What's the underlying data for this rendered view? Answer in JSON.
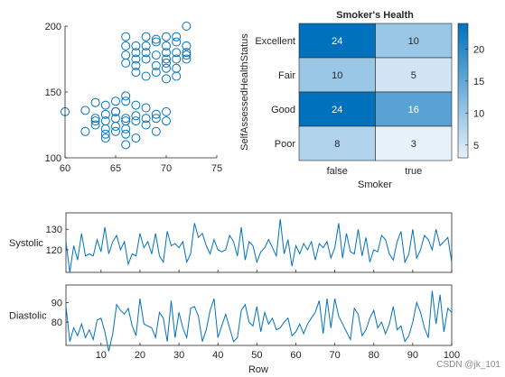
{
  "chart_data": [
    {
      "type": "scatter",
      "title": "",
      "xlabel": "",
      "ylabel": "",
      "xlim": [
        60,
        75
      ],
      "ylim": [
        100,
        200
      ],
      "xticks": [
        "60",
        "65",
        "70",
        "75"
      ],
      "yticks": [
        "100",
        "150",
        "200"
      ],
      "marker": "circle-open",
      "color": "#0072BD",
      "points": [
        [
          60,
          135
        ],
        [
          62,
          136
        ],
        [
          62,
          120
        ],
        [
          63,
          130
        ],
        [
          63,
          128
        ],
        [
          63,
          142
        ],
        [
          63,
          125
        ],
        [
          64,
          133
        ],
        [
          64,
          128
        ],
        [
          64,
          122
        ],
        [
          64,
          140
        ],
        [
          64,
          118
        ],
        [
          64,
          115
        ],
        [
          65,
          130
        ],
        [
          65,
          124
        ],
        [
          65,
          135
        ],
        [
          65,
          120
        ],
        [
          65,
          143
        ],
        [
          65,
          135
        ],
        [
          66,
          130
        ],
        [
          66,
          147
        ],
        [
          66,
          143
        ],
        [
          66,
          110
        ],
        [
          66,
          128
        ],
        [
          66,
          122
        ],
        [
          66,
          118
        ],
        [
          67,
          140
        ],
        [
          67,
          132
        ],
        [
          67,
          128
        ],
        [
          67,
          115
        ],
        [
          68,
          130
        ],
        [
          68,
          125
        ],
        [
          68,
          138
        ],
        [
          69,
          130
        ],
        [
          69,
          133
        ],
        [
          69,
          120
        ],
        [
          70,
          135
        ],
        [
          70,
          128
        ],
        [
          66,
          192
        ],
        [
          66,
          185
        ],
        [
          66,
          178
        ],
        [
          66,
          172
        ],
        [
          67,
          180
        ],
        [
          67,
          170
        ],
        [
          67,
          165
        ],
        [
          67,
          185
        ],
        [
          67,
          175
        ],
        [
          68,
          180
        ],
        [
          68,
          192
        ],
        [
          68,
          175
        ],
        [
          68,
          162
        ],
        [
          68,
          185
        ],
        [
          69,
          178
        ],
        [
          69,
          170
        ],
        [
          69,
          188
        ],
        [
          69,
          190
        ],
        [
          69,
          165
        ],
        [
          70,
          180
        ],
        [
          70,
          175
        ],
        [
          70,
          172
        ],
        [
          70,
          185
        ],
        [
          70,
          192
        ],
        [
          70,
          160
        ],
        [
          70,
          168
        ],
        [
          71,
          180
        ],
        [
          71,
          192
        ],
        [
          71,
          175
        ],
        [
          71,
          162
        ],
        [
          71,
          188
        ],
        [
          71,
          168
        ],
        [
          72,
          180
        ],
        [
          72,
          178
        ],
        [
          72,
          185
        ],
        [
          72,
          175
        ],
        [
          72,
          200
        ]
      ]
    },
    {
      "type": "heatmap",
      "title": "Smoker's Health",
      "xlabel": "Smoker",
      "ylabel": "SelfAssessedHealthStatus",
      "xcategories": [
        "false",
        "true"
      ],
      "ycategories": [
        "Excellent",
        "Fair",
        "Good",
        "Poor"
      ],
      "values": [
        [
          24,
          10
        ],
        [
          10,
          5
        ],
        [
          24,
          16
        ],
        [
          8,
          3
        ]
      ],
      "colorbar": {
        "min": 3,
        "max": 24,
        "ticks": [
          "5",
          "10",
          "15",
          "20"
        ]
      },
      "colormap": "blues"
    },
    {
      "type": "line",
      "title": "",
      "xlabel": "Row",
      "x_range": [
        1,
        100
      ],
      "xticks": [
        "10",
        "20",
        "30",
        "40",
        "50",
        "60",
        "70",
        "80",
        "90",
        "100"
      ],
      "color": "#0072BD",
      "series": [
        {
          "name": "Systolic",
          "ylim": [
            109,
            138
          ],
          "yticks": [
            "120",
            "130"
          ],
          "values": [
            124,
            109,
            122,
            115,
            128,
            117,
            118,
            117,
            125,
            119,
            131,
            118,
            124,
            127,
            120,
            124,
            113,
            118,
            117,
            128,
            121,
            124,
            118,
            128,
            117,
            114,
            129,
            122,
            123,
            121,
            124,
            114,
            118,
            133,
            126,
            128,
            122,
            118,
            125,
            120,
            119,
            120,
            127,
            124,
            117,
            131,
            115,
            124,
            122,
            114,
            119,
            121,
            125,
            121,
            117,
            135,
            118,
            125,
            112,
            122,
            118,
            123,
            120,
            124,
            115,
            123,
            121,
            124,
            116,
            121,
            133,
            116,
            128,
            119,
            118,
            130,
            117,
            126,
            114,
            120,
            119,
            127,
            125,
            118,
            115,
            124,
            129,
            114,
            118,
            130,
            116,
            120,
            127,
            125,
            120,
            130,
            122,
            124,
            126,
            114
          ]
        },
        {
          "name": "Diastolic",
          "ylim": [
            68,
            99
          ],
          "yticks": [
            "80",
            "90"
          ],
          "values": [
            88,
            70,
            77,
            73,
            79,
            72,
            76,
            71,
            81,
            82,
            75,
            65,
            74,
            89,
            86,
            84,
            87,
            78,
            73,
            92,
            79,
            78,
            77,
            72,
            85,
            82,
            70,
            91,
            72,
            85,
            77,
            72,
            87,
            88,
            83,
            70,
            76,
            86,
            92,
            72,
            78,
            84,
            77,
            70,
            72,
            86,
            89,
            80,
            78,
            88,
            75,
            85,
            79,
            82,
            76,
            77,
            80,
            82,
            73,
            75,
            79,
            74,
            79,
            82,
            85,
            91,
            74,
            92,
            77,
            92,
            83,
            79,
            75,
            71,
            87,
            84,
            73,
            76,
            82,
            86,
            77,
            80,
            74,
            79,
            88,
            76,
            78,
            70,
            73,
            80,
            90,
            85,
            77,
            72,
            96,
            79,
            94,
            75,
            87,
            85
          ]
        }
      ]
    }
  ],
  "watermark": "CSDN @jk_101"
}
